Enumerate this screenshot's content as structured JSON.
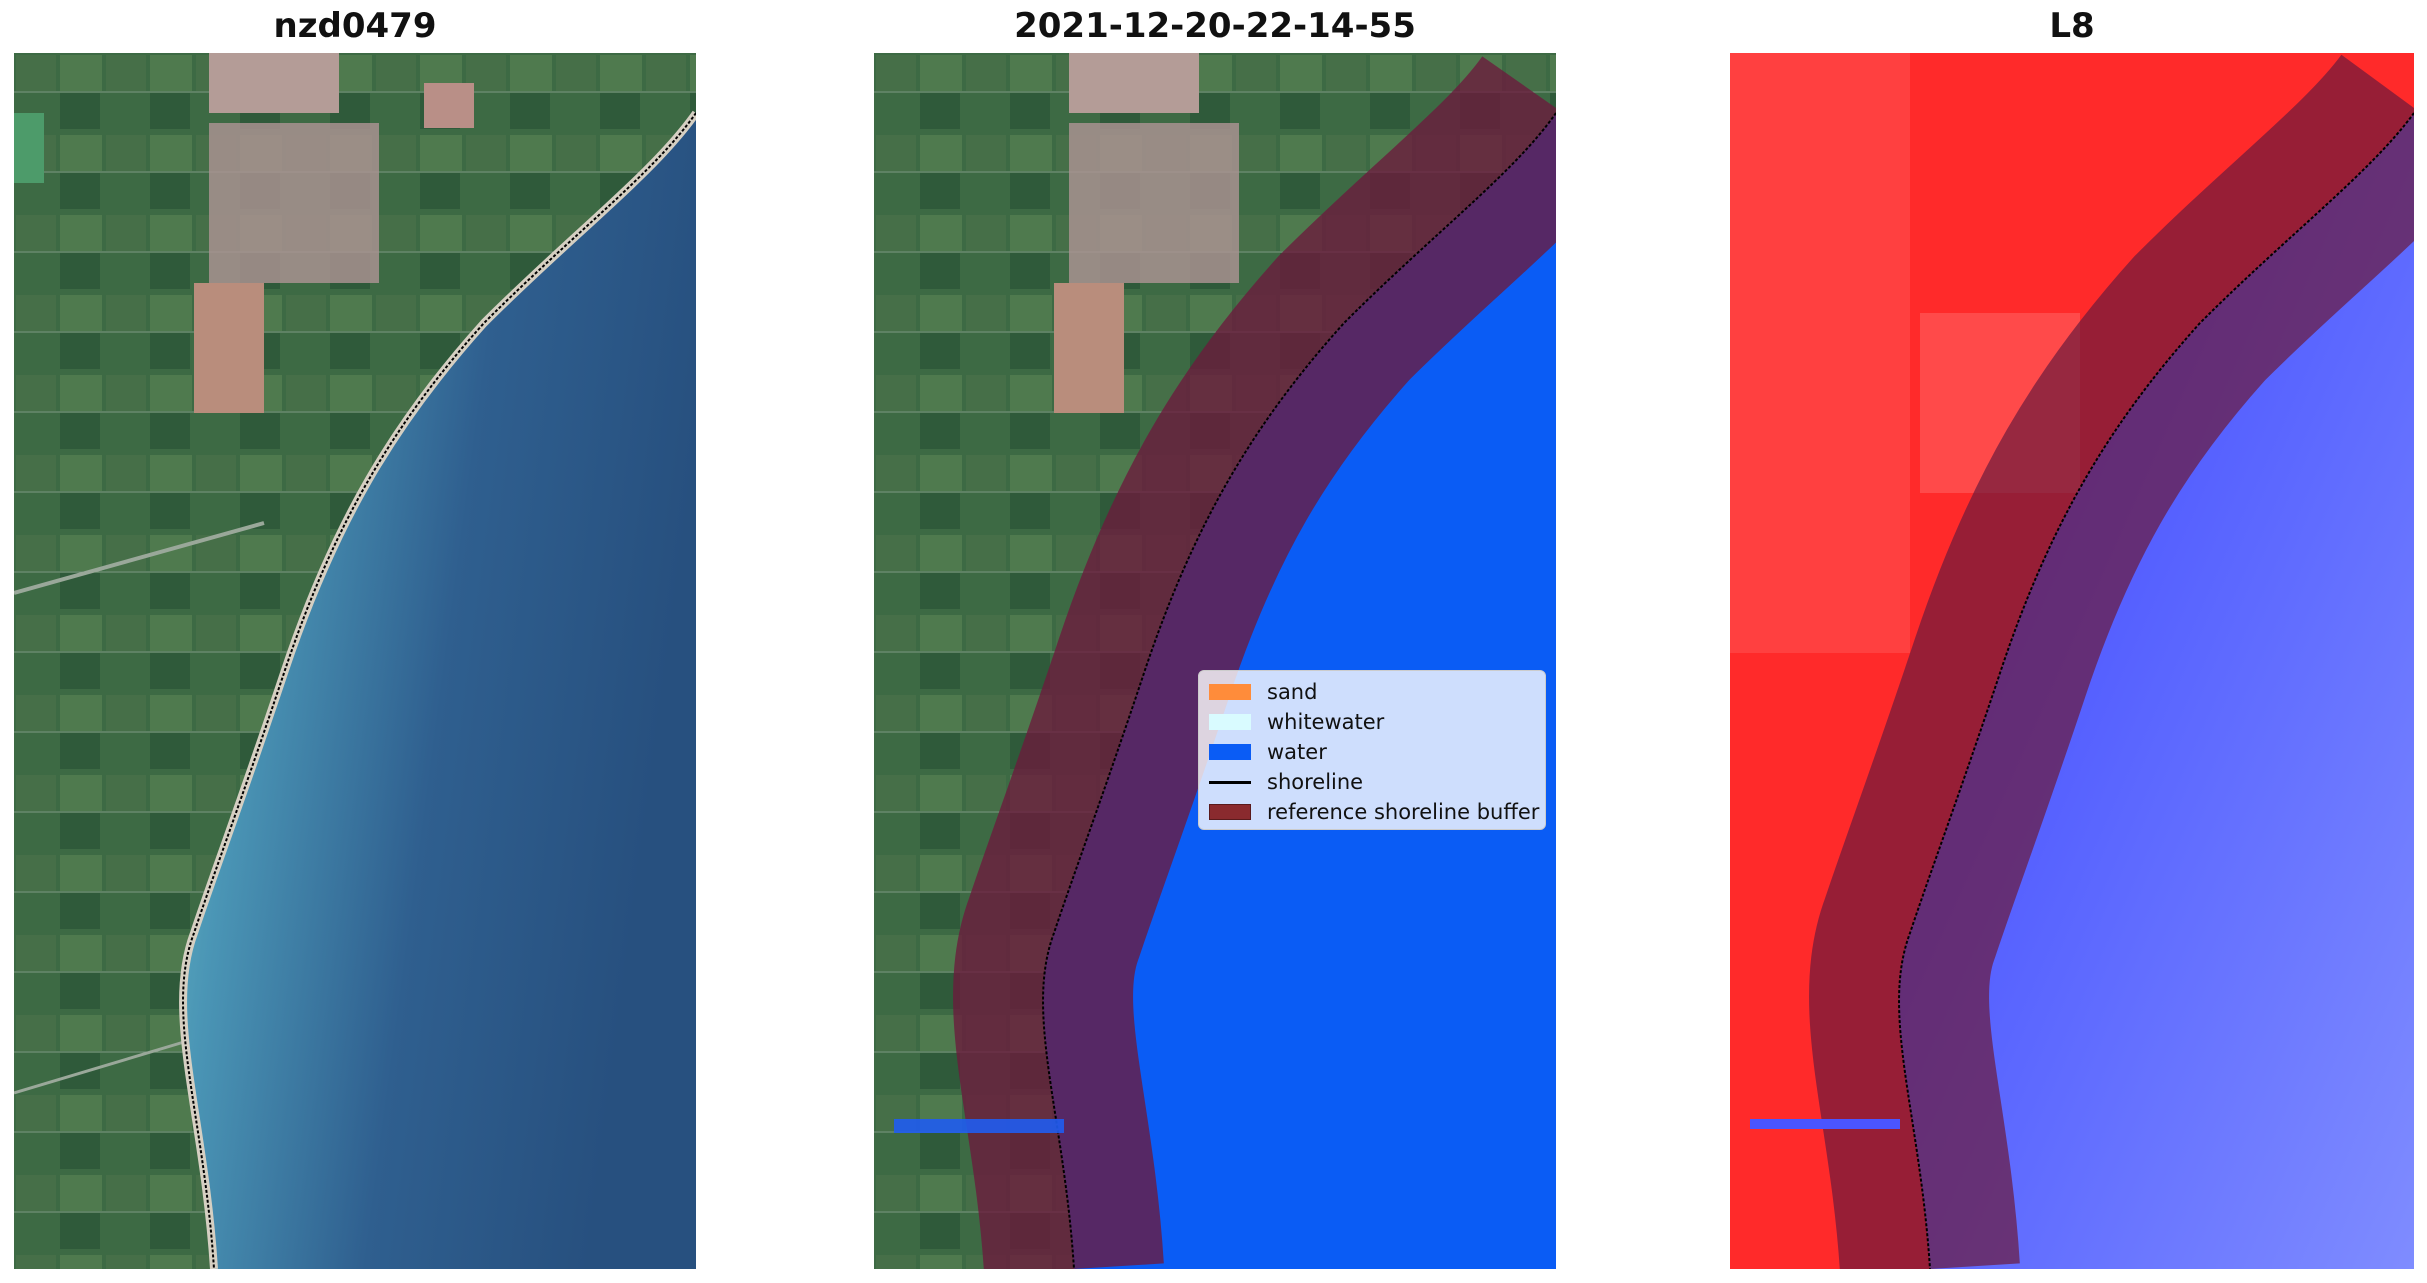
{
  "panels": [
    {
      "title": "nzd0479"
    },
    {
      "title": "2021-12-20-22-14-55"
    },
    {
      "title": "L8"
    }
  ],
  "legend": {
    "items": [
      {
        "label": "sand",
        "color": "#ff8c3a",
        "kind": "patch"
      },
      {
        "label": "whitewater",
        "color": "#d9fbff",
        "kind": "patch"
      },
      {
        "label": "water",
        "color": "#0a5cf5",
        "kind": "patch"
      },
      {
        "label": "shoreline",
        "color": "#000000",
        "kind": "line"
      },
      {
        "label": "reference shoreline buffer",
        "color": "#8a2a2e",
        "kind": "patch"
      }
    ]
  },
  "colors": {
    "land": "#3e6b45",
    "ocean_rgb": "#2f5f8f",
    "water_class": "#0a5cf5",
    "buffer": "#6b1a3c",
    "index_land": "#ff2a2a",
    "index_water": "#5060ff"
  }
}
